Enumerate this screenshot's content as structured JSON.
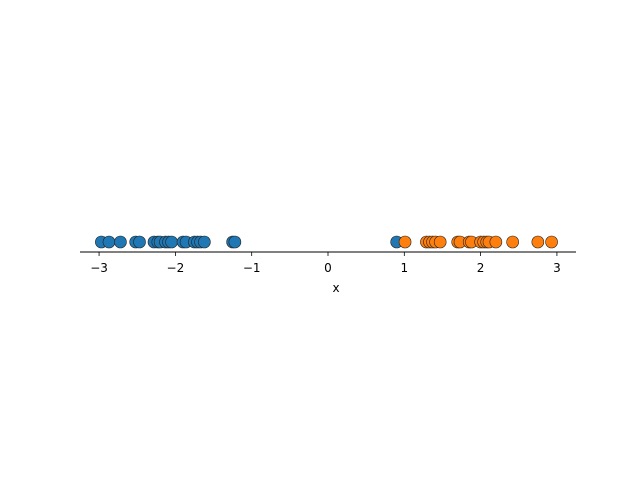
{
  "chart_data": {
    "type": "scatter",
    "title": "",
    "xlabel": "x",
    "ylabel": "",
    "xlim": [
      -3.25,
      3.25
    ],
    "grid": false,
    "legend": "none",
    "x_ticks": [
      -3,
      -2,
      -1,
      0,
      1,
      2,
      3
    ],
    "x_tick_labels": [
      "−3",
      "−2",
      "−1",
      "0",
      "1",
      "2",
      "3"
    ],
    "series": [
      {
        "color": "#1f77b4",
        "x": [
          -2.97,
          -2.87,
          -2.72,
          -2.52,
          -2.47,
          -2.28,
          -2.23,
          -2.2,
          -2.13,
          -2.09,
          -2.05,
          -1.9,
          -1.86,
          -1.75,
          -1.71,
          -1.67,
          -1.62,
          -1.25,
          -1.22,
          0.9
        ]
      },
      {
        "color": "#ff7f0e",
        "x": [
          1.01,
          1.29,
          1.33,
          1.37,
          1.41,
          1.47,
          1.7,
          1.73,
          1.85,
          1.88,
          2.0,
          2.04,
          2.08,
          2.11,
          2.2,
          2.42,
          2.75,
          2.93
        ]
      }
    ]
  }
}
